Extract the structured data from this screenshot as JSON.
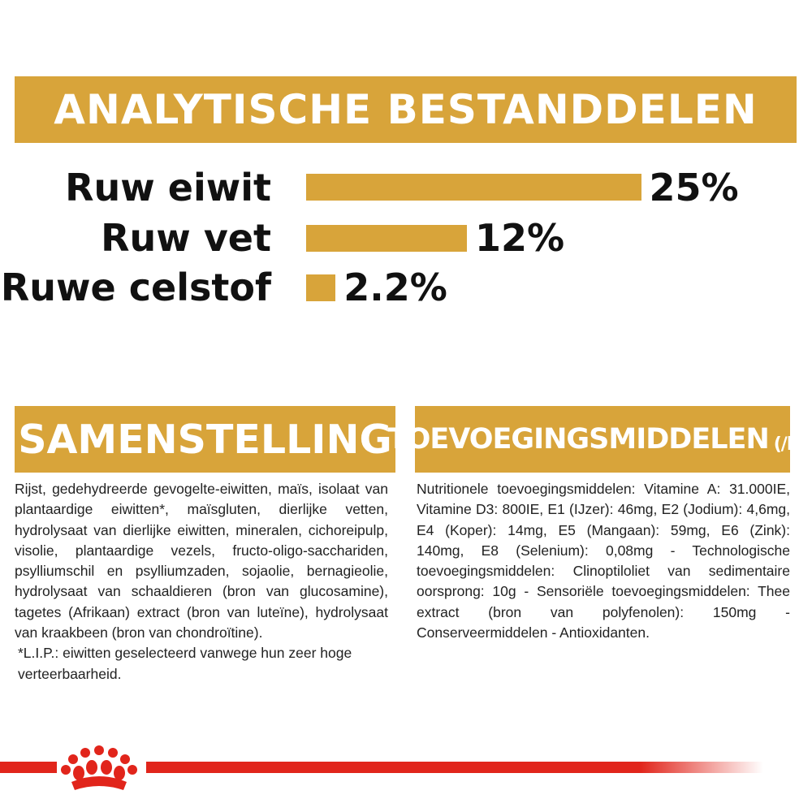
{
  "analytical": {
    "title": "ANALYTISCHE BESTANDDELEN",
    "nutrients": [
      {
        "label": "Ruw eiwit",
        "value": "25%",
        "percent": 25
      },
      {
        "label": "Ruw vet",
        "value": "12%",
        "percent": 12
      },
      {
        "label": "Ruwe celstof",
        "value": "2.2%",
        "percent": 2.2
      }
    ]
  },
  "composition": {
    "title": "SAMENSTELLING",
    "text": "Rijst, gedehydreerde gevogelte-eiwitten, maïs, isolaat van plantaardige eiwitten*, maïsgluten, dierlijke vetten, hydrolysaat van dierlijke eiwitten, mineralen, cichoreipulp, visolie, plantaardige vezels, fructo-oligo-sacchariden, psylliumschil en psylliumzaden, sojaolie, bernagieolie, hydrolysaat van schaaldieren (bron van glucosamine), tagetes (Afrikaan) extract (bron van luteïne), hydrolysaat van kraakbeen (bron van chondroïtine).",
    "footnote": "*L.I.P.: eiwitten geselecteerd vanwege hun zeer hoge verteerbaarheid."
  },
  "additives": {
    "title": "TOEVOEGINGSMIDDELEN",
    "unit": "(/kg)",
    "text": "Nutritionele toevoegingsmiddelen: Vitamine A: 31.000IE, Vitamine D3: 800IE, E1 (IJzer): 46mg, E2 (Jodium): 4,6mg, E4 (Koper): 14mg, E5 (Mangaan): 59mg, E6 (Zink): 140mg, E8 (Selenium): 0,08mg - Technologische toevoegingsmiddelen: Clinoptiloliet van sedimentaire oorsprong: 10g - Sensoriële toevoegingsmiddelen: Thee extract (bron van polyfenolen): 150mg - Conserveermiddelen - Antioxidanten."
  },
  "colors": {
    "accent": "#d8a43a",
    "brand_red": "#e1251b"
  },
  "footer": {
    "logo": "royal-canin-crown-icon"
  }
}
